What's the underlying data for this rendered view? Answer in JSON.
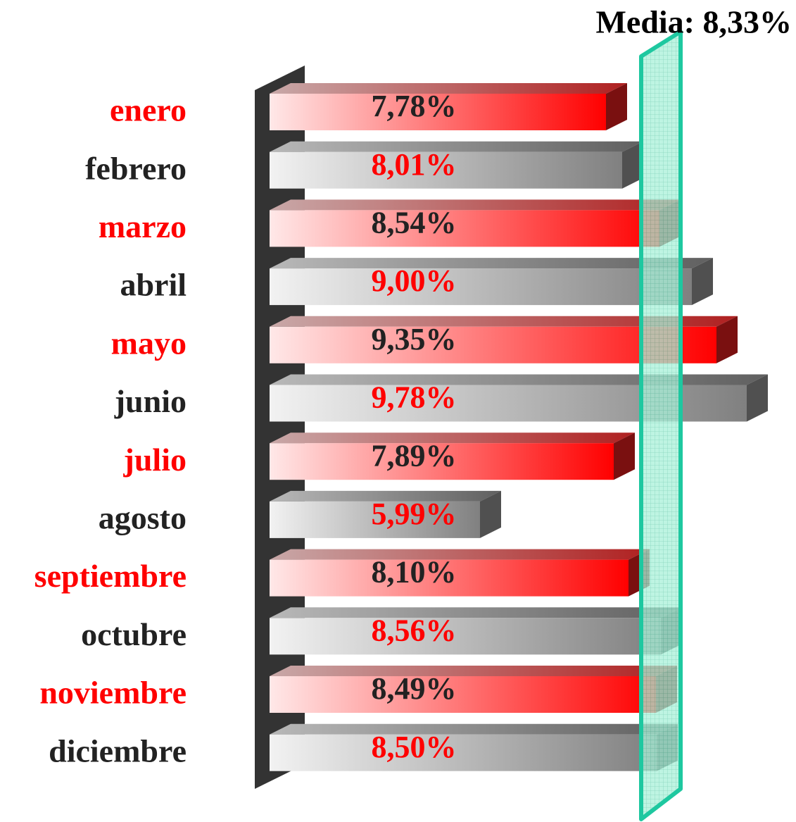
{
  "chart_data": {
    "type": "bar3d",
    "annotation": "Media: 8,33%",
    "mean": 8.33,
    "categories": [
      "enero",
      "febrero",
      "marzo",
      "abril",
      "mayo",
      "junio",
      "julio",
      "agosto",
      "septiembre",
      "octubre",
      "noviembre",
      "diciembre"
    ],
    "values": [
      7.78,
      8.01,
      8.54,
      9.0,
      9.35,
      9.78,
      7.89,
      5.99,
      8.1,
      8.56,
      8.49,
      8.5
    ],
    "value_labels": [
      "7,78%",
      "8,01%",
      "8,54%",
      "9,00%",
      "9,35%",
      "9,78%",
      "7,89%",
      "5,99%",
      "8,10%",
      "8,56%",
      "8,49%",
      "8,50%"
    ],
    "colors": [
      "#ff0000",
      "#808080",
      "#ff0000",
      "#808080",
      "#ff0000",
      "#808080",
      "#ff0000",
      "#808080",
      "#ff0000",
      "#808080",
      "#ff0000",
      "#808080"
    ],
    "mean_color": "#1ec8a0",
    "xlim": [
      3,
      10
    ]
  }
}
